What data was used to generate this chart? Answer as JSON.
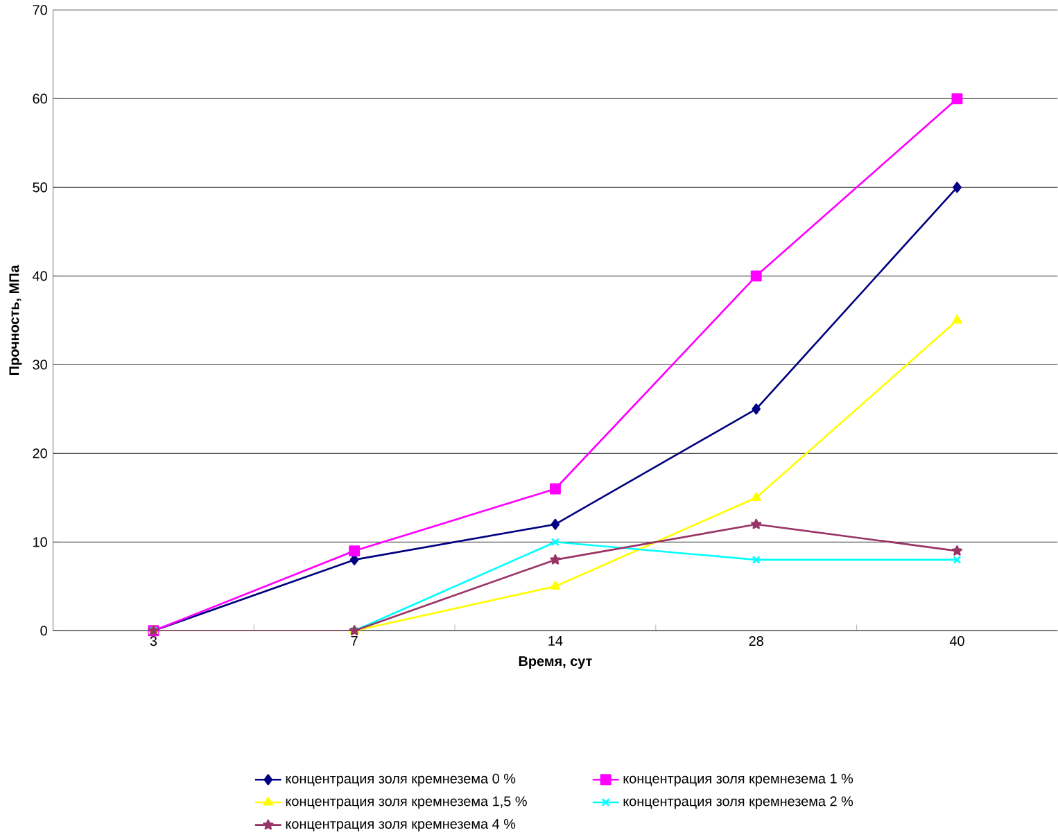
{
  "chart_data": {
    "type": "line",
    "xlabel": "Время, сут",
    "ylabel": "Прочность, МПа",
    "categories": [
      "3",
      "7",
      "14",
      "28",
      "40"
    ],
    "ylim": [
      0,
      70
    ],
    "yticks": [
      0,
      10,
      20,
      30,
      40,
      50,
      60,
      70
    ],
    "grid": "y",
    "legend": "bottom",
    "line_style": "solid",
    "series": [
      {
        "name": "концентрация  золя кремнезема 0 %",
        "color": "#000080",
        "marker": "diamond",
        "values": [
          0,
          8,
          12,
          25,
          50
        ]
      },
      {
        "name": "концентрация золя кремнезема 1 %",
        "color": "#ff00ff",
        "marker": "square",
        "values": [
          0,
          9,
          16,
          40,
          60
        ]
      },
      {
        "name": "концентрация золя кремнезема 1,5 %",
        "color": "#ffff00",
        "marker": "triangle",
        "values": [
          0,
          0,
          5,
          15,
          35
        ]
      },
      {
        "name": "концентрация золя кремнезема 2 %",
        "color": "#00ffff",
        "marker": "cross",
        "values": [
          0,
          0,
          10,
          8,
          8
        ]
      },
      {
        "name": "концентрация золя кремнезема 4 %",
        "color": "#993366",
        "marker": "star",
        "values": [
          0,
          0,
          8,
          12,
          9
        ]
      }
    ]
  }
}
